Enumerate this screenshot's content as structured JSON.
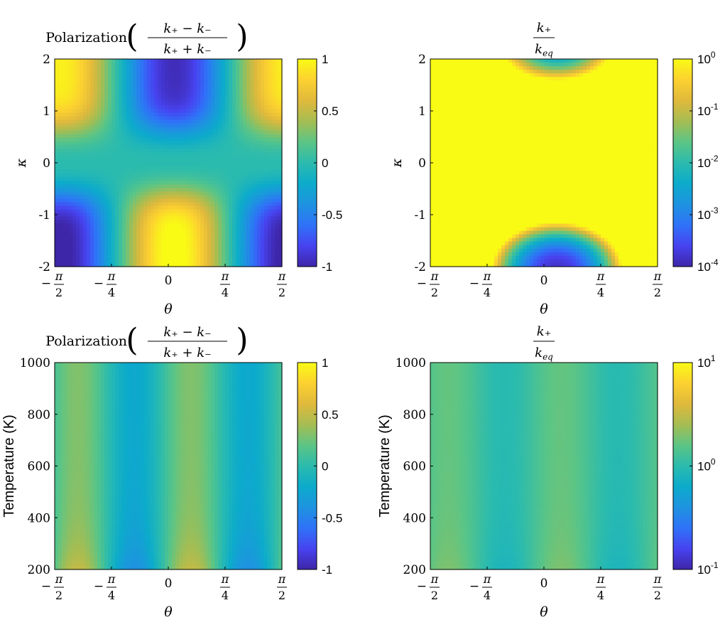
{
  "colors": {
    "parula": [
      "#3e26a8",
      "#4743f0",
      "#2f72f8",
      "#1e93e0",
      "#0cabcb",
      "#2bbbae",
      "#5cc585",
      "#a5bd52",
      "#e0b93c",
      "#fcd130",
      "#f9fb15"
    ]
  },
  "chart_data": [
    {
      "type": "heatmap",
      "title": {
        "prefix": "Polarization",
        "formula": "(k+ − k−)/(k+ + k−)"
      },
      "xlabel": "θ",
      "ylabel": "κ",
      "x_ticks": [
        "−π/2",
        "−π/4",
        "0",
        "π/4",
        "π/2"
      ],
      "xlim": [
        -1.5708,
        1.5708
      ],
      "y_ticks": [
        "-2",
        "-1",
        "0",
        "1",
        "2"
      ],
      "ylim": [
        -2,
        2
      ],
      "colorbar": {
        "scale": "linear",
        "range": [
          -1,
          1
        ],
        "ticks": [
          "1",
          "0.5",
          "0",
          "-0.5",
          "-1"
        ]
      },
      "colormap": "parula"
    },
    {
      "type": "heatmap",
      "title": {
        "prefix": "",
        "formula": "k+/k_eq"
      },
      "xlabel": "θ",
      "ylabel": "κ",
      "x_ticks": [
        "−π/2",
        "−π/4",
        "0",
        "π/4",
        "π/2"
      ],
      "xlim": [
        -1.5708,
        1.5708
      ],
      "y_ticks": [
        "-2",
        "-1",
        "0",
        "1",
        "2"
      ],
      "ylim": [
        -2,
        2
      ],
      "colorbar": {
        "scale": "log",
        "range": [
          0.0001,
          1
        ],
        "ticks": [
          "10^0",
          "10^-1",
          "10^-2",
          "10^-3",
          "10^-4"
        ]
      },
      "colormap": "parula"
    },
    {
      "type": "heatmap",
      "title": {
        "prefix": "Polarization",
        "formula": "(k+ − k−)/(k+ + k−)"
      },
      "xlabel": "θ",
      "ylabel": "Temperature (K)",
      "x_ticks": [
        "−π/2",
        "−π/4",
        "0",
        "π/4",
        "π/2"
      ],
      "xlim": [
        -1.5708,
        1.5708
      ],
      "y_ticks": [
        "200",
        "400",
        "600",
        "800",
        "1000"
      ],
      "ylim": [
        200,
        1000
      ],
      "colorbar": {
        "scale": "linear",
        "range": [
          -1,
          1
        ],
        "ticks": [
          "1",
          "0.5",
          "0",
          "-0.5",
          "-1"
        ]
      },
      "colormap": "parula"
    },
    {
      "type": "heatmap",
      "title": {
        "prefix": "",
        "formula": "k+/k_eq"
      },
      "xlabel": "θ",
      "ylabel": "Temperature (K)",
      "x_ticks": [
        "−π/2",
        "−π/4",
        "0",
        "π/4",
        "π/2"
      ],
      "xlim": [
        -1.5708,
        1.5708
      ],
      "y_ticks": [
        "200",
        "400",
        "600",
        "800",
        "1000"
      ],
      "ylim": [
        200,
        1000
      ],
      "colorbar": {
        "scale": "log",
        "range": [
          0.1,
          10
        ],
        "ticks": [
          "10^1",
          "10^0",
          "10^-1"
        ]
      },
      "colormap": "parula"
    }
  ]
}
